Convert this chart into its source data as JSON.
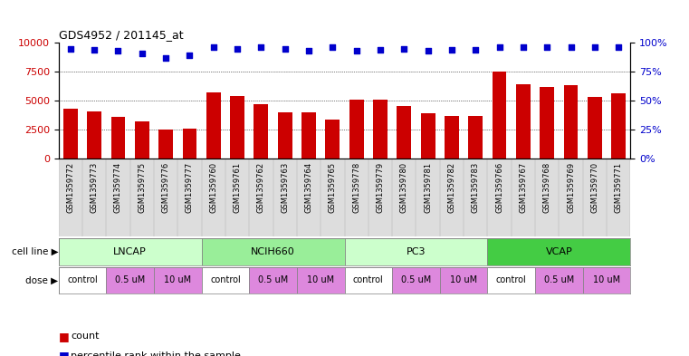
{
  "title": "GDS4952 / 201145_at",
  "samples": [
    "GSM1359772",
    "GSM1359773",
    "GSM1359774",
    "GSM1359775",
    "GSM1359776",
    "GSM1359777",
    "GSM1359760",
    "GSM1359761",
    "GSM1359762",
    "GSM1359763",
    "GSM1359764",
    "GSM1359765",
    "GSM1359778",
    "GSM1359779",
    "GSM1359780",
    "GSM1359781",
    "GSM1359782",
    "GSM1359783",
    "GSM1359766",
    "GSM1359767",
    "GSM1359768",
    "GSM1359769",
    "GSM1359770",
    "GSM1359771"
  ],
  "counts": [
    4300,
    4100,
    3600,
    3200,
    2500,
    2550,
    5700,
    5400,
    4700,
    4000,
    4000,
    3350,
    5050,
    5100,
    4500,
    3900,
    3700,
    3700,
    7500,
    6400,
    6200,
    6300,
    5300,
    5600
  ],
  "percentile_ranks": [
    95,
    94,
    93,
    91,
    87,
    89,
    96,
    95,
    96,
    95,
    93,
    96,
    93,
    94,
    95,
    93,
    94,
    94,
    96,
    96,
    96,
    96,
    96,
    96
  ],
  "bar_color": "#cc0000",
  "dot_color": "#0000cc",
  "cell_line_groups": [
    {
      "name": "LNCAP",
      "start": 0,
      "end": 5,
      "color": "#ccffcc"
    },
    {
      "name": "NCIH660",
      "start": 6,
      "end": 11,
      "color": "#99ee99"
    },
    {
      "name": "PC3",
      "start": 12,
      "end": 17,
      "color": "#ccffcc"
    },
    {
      "name": "VCAP",
      "start": 18,
      "end": 23,
      "color": "#44cc44"
    }
  ],
  "dose_groups": [
    {
      "label": "control",
      "start": 0,
      "end": 1,
      "color": "#ffffff"
    },
    {
      "label": "0.5 uM",
      "start": 2,
      "end": 3,
      "color": "#dd88dd"
    },
    {
      "label": "10 uM",
      "start": 4,
      "end": 5,
      "color": "#dd88dd"
    },
    {
      "label": "control",
      "start": 6,
      "end": 7,
      "color": "#ffffff"
    },
    {
      "label": "0.5 uM",
      "start": 8,
      "end": 9,
      "color": "#dd88dd"
    },
    {
      "label": "10 uM",
      "start": 10,
      "end": 11,
      "color": "#dd88dd"
    },
    {
      "label": "control",
      "start": 12,
      "end": 13,
      "color": "#ffffff"
    },
    {
      "label": "0.5 uM",
      "start": 14,
      "end": 15,
      "color": "#dd88dd"
    },
    {
      "label": "10 uM",
      "start": 16,
      "end": 17,
      "color": "#dd88dd"
    },
    {
      "label": "control",
      "start": 18,
      "end": 19,
      "color": "#ffffff"
    },
    {
      "label": "0.5 uM",
      "start": 20,
      "end": 21,
      "color": "#dd88dd"
    },
    {
      "label": "10 uM",
      "start": 22,
      "end": 23,
      "color": "#dd88dd"
    }
  ],
  "ylim": [
    0,
    10000
  ],
  "yticks": [
    0,
    2500,
    5000,
    7500,
    10000
  ],
  "ytick_labels": [
    "0",
    "2500",
    "5000",
    "7500",
    "10000"
  ],
  "right_yticks": [
    0,
    25,
    50,
    75,
    100
  ],
  "right_ytick_labels": [
    "0%",
    "25%",
    "50%",
    "75%",
    "100%"
  ],
  "grid_lines": [
    2500,
    5000,
    7500
  ],
  "legend_count_label": "count",
  "legend_pct_label": "percentile rank within the sample",
  "cell_line_label": "cell line",
  "dose_label": "dose"
}
